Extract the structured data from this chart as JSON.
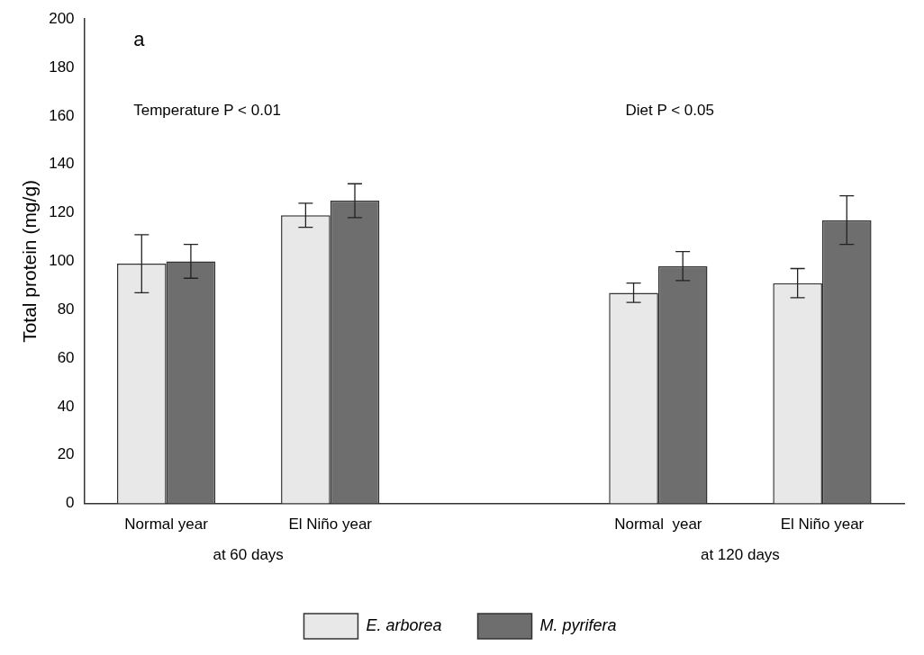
{
  "chart_data": {
    "type": "bar",
    "ylabel": "Total protein (mg/g)",
    "categories": [
      "Normal year",
      "El Niño year",
      null,
      "Normal  year",
      "El Niño year"
    ],
    "series": [
      {
        "name": "E. arborea",
        "color": "#e8e8e8",
        "values": [
          99,
          119,
          null,
          87,
          91
        ],
        "errors": [
          12,
          5,
          null,
          4,
          6
        ]
      },
      {
        "name": "M. pyrifera",
        "color": "#6e6e6e",
        "values": [
          100,
          125,
          null,
          98,
          117
        ],
        "errors": [
          7,
          7,
          null,
          6,
          10
        ]
      }
    ],
    "ylim": [
      0,
      200
    ],
    "yticks": [
      0,
      20,
      40,
      60,
      80,
      100,
      120,
      140,
      160,
      180,
      200
    ],
    "grid": false,
    "legend": "bottom",
    "annotations": [
      "a",
      "Temperature P < 0.01",
      "Diet P < 0.05",
      "at 60 days",
      "at 120 days"
    ]
  }
}
